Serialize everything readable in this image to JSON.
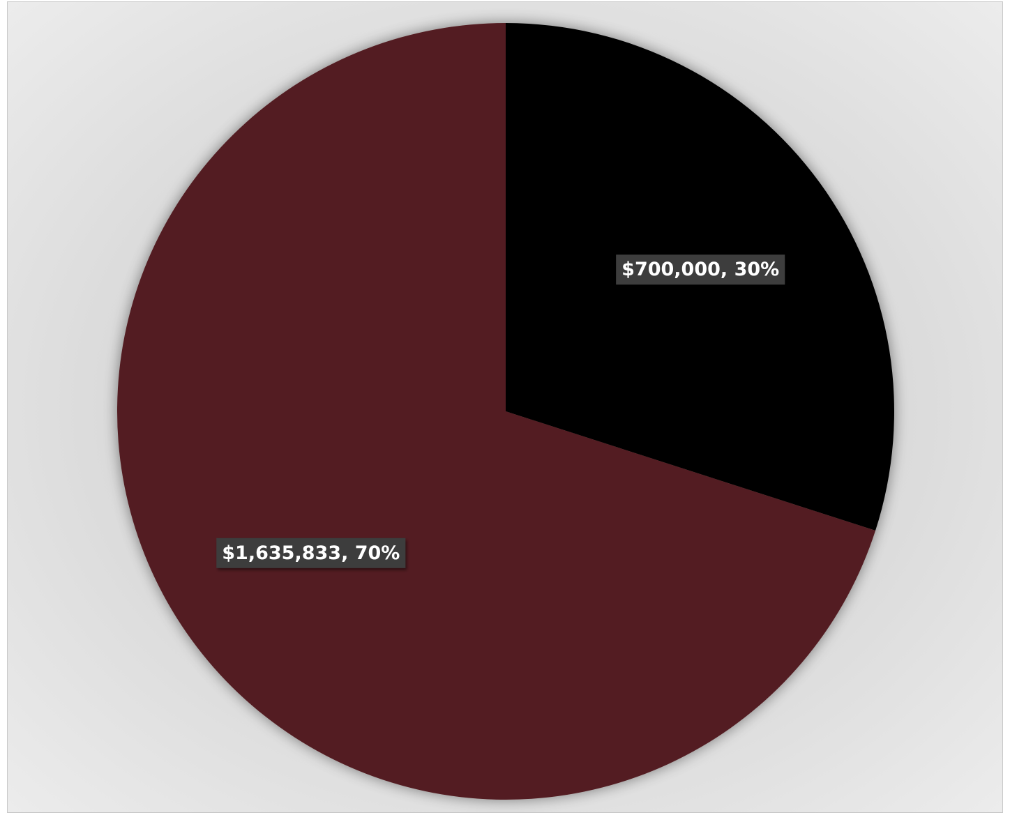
{
  "chart_data": {
    "type": "pie",
    "start_angle_deg": 0,
    "direction": "clockwise",
    "slices": [
      {
        "value": 700000,
        "percent": 30,
        "label": "$700,000, 30%",
        "color": "#000000"
      },
      {
        "value": 1635833,
        "percent": 70,
        "label": "$1,635,833, 70%",
        "color": "#521d20"
      }
    ],
    "data_label_background": "#3d3d3d",
    "title": "",
    "legend": "none"
  }
}
